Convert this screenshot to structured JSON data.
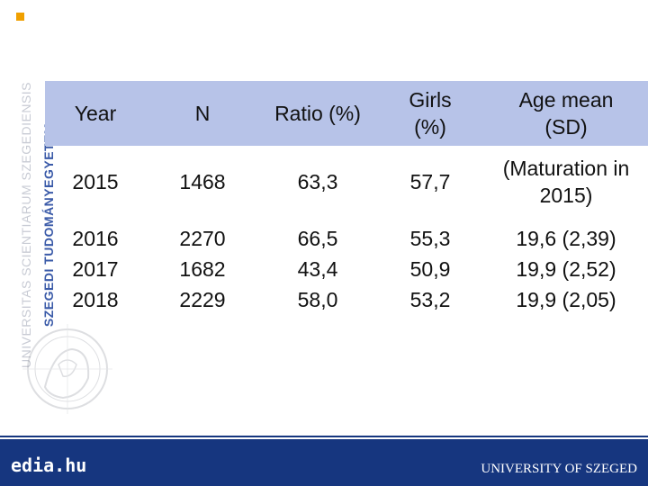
{
  "brand": {
    "vertical_line1": "UNIVERSITAS SCIENTIARUM SZEGEDIENSIS",
    "vertical_line2": "SZEGEDI TUDOMÁNYEGYETEM",
    "accent_color": "#f0a000",
    "bar_color": "#16367f"
  },
  "table": {
    "headers": {
      "year": "Year",
      "n": "N",
      "ratio": "Ratio (%)",
      "girls_line1": "Girls",
      "girls_line2": "(%)",
      "age_line1": "Age mean",
      "age_line2": "(SD)"
    },
    "row_2015": {
      "year": "2015",
      "n": "1468",
      "ratio": "63,3",
      "girls": "57,7",
      "age_line1": "(Maturation in",
      "age_line2": "2015)"
    },
    "rows": [
      {
        "year": "2016",
        "n": "2270",
        "ratio": "66,5",
        "girls": "55,3",
        "age": "19,6 (2,39)"
      },
      {
        "year": "2017",
        "n": "1682",
        "ratio": "43,4",
        "girls": "50,9",
        "age": "19,9 (2,52)"
      },
      {
        "year": "2018",
        "n": "2229",
        "ratio": "58,0",
        "girls": "53,2",
        "age": "19,9 (2,05)"
      }
    ]
  },
  "footer": {
    "site": "edia.hu",
    "university": "UNIVERSITY OF SZEGED"
  }
}
